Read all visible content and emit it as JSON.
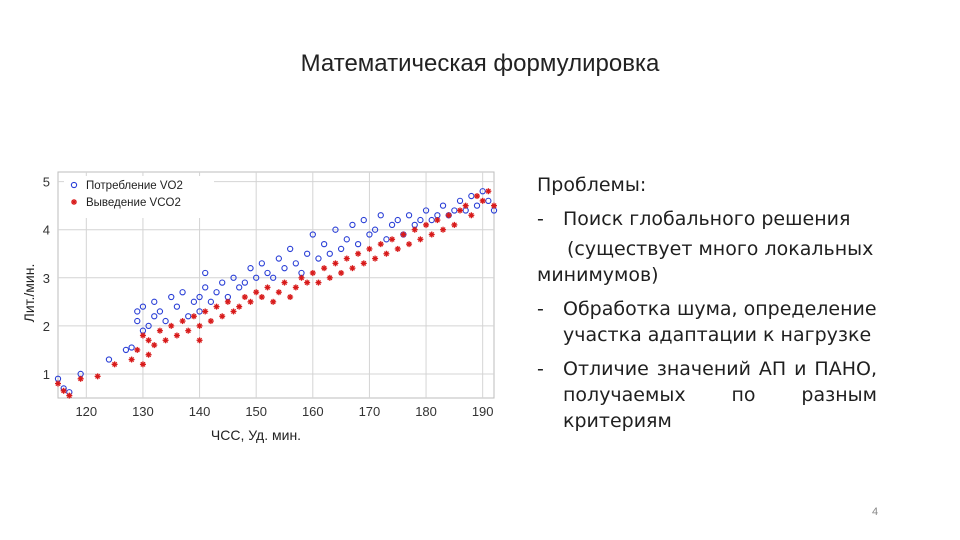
{
  "slide": {
    "title": "Математическая формулировка",
    "page_number": "4"
  },
  "text_panel": {
    "heading": "Проблемы:",
    "bullets": [
      {
        "dash": "-",
        "text": "Поиск глобального решения"
      },
      {
        "dash": "-",
        "text": "Обработка шума, определение участка адаптации к нагрузке"
      },
      {
        "dash": "-",
        "text": "Отличие значений АП и ПАНО, получаемых по разным критериям"
      }
    ],
    "note_line1": "(существует много локальных",
    "note_line2": "минимумов)"
  },
  "chart_data": {
    "type": "scatter",
    "xlabel": "ЧСС, Уд. мин.",
    "ylabel": "Лит./мин.",
    "xlim": [
      115,
      192
    ],
    "ylim": [
      0.5,
      5.2
    ],
    "x_ticks": [
      120,
      130,
      140,
      150,
      160,
      170,
      180,
      190
    ],
    "y_ticks": [
      1,
      2,
      3,
      4,
      5
    ],
    "grid": true,
    "legend_position": "top-left",
    "series": [
      {
        "name": "Потребление VO2",
        "marker": "circle",
        "color": "#2a3fd6",
        "points": [
          [
            115,
            0.9
          ],
          [
            116,
            0.7
          ],
          [
            117,
            0.62
          ],
          [
            119,
            1.0
          ],
          [
            124,
            1.3
          ],
          [
            127,
            1.5
          ],
          [
            128,
            1.55
          ],
          [
            129,
            2.1
          ],
          [
            129,
            2.3
          ],
          [
            130,
            1.9
          ],
          [
            130,
            2.4
          ],
          [
            131,
            2.0
          ],
          [
            132,
            2.2
          ],
          [
            132,
            2.5
          ],
          [
            133,
            2.3
          ],
          [
            134,
            2.1
          ],
          [
            135,
            2.6
          ],
          [
            136,
            2.4
          ],
          [
            137,
            2.7
          ],
          [
            138,
            2.2
          ],
          [
            139,
            2.5
          ],
          [
            140,
            2.3
          ],
          [
            140,
            2.6
          ],
          [
            141,
            2.8
          ],
          [
            141,
            3.1
          ],
          [
            142,
            2.5
          ],
          [
            143,
            2.7
          ],
          [
            144,
            2.9
          ],
          [
            145,
            2.6
          ],
          [
            146,
            3.0
          ],
          [
            147,
            2.8
          ],
          [
            148,
            2.9
          ],
          [
            149,
            3.2
          ],
          [
            150,
            3.0
          ],
          [
            151,
            3.3
          ],
          [
            152,
            3.1
          ],
          [
            153,
            3.0
          ],
          [
            154,
            3.4
          ],
          [
            155,
            3.2
          ],
          [
            156,
            3.6
          ],
          [
            157,
            3.3
          ],
          [
            158,
            3.1
          ],
          [
            159,
            3.5
          ],
          [
            160,
            3.9
          ],
          [
            161,
            3.4
          ],
          [
            162,
            3.7
          ],
          [
            163,
            3.5
          ],
          [
            164,
            4.0
          ],
          [
            165,
            3.6
          ],
          [
            166,
            3.8
          ],
          [
            167,
            4.1
          ],
          [
            168,
            3.7
          ],
          [
            169,
            4.2
          ],
          [
            170,
            3.9
          ],
          [
            171,
            4.0
          ],
          [
            172,
            4.3
          ],
          [
            173,
            3.8
          ],
          [
            174,
            4.1
          ],
          [
            175,
            4.2
          ],
          [
            176,
            3.9
          ],
          [
            177,
            4.3
          ],
          [
            178,
            4.1
          ],
          [
            179,
            4.2
          ],
          [
            180,
            4.4
          ],
          [
            181,
            4.2
          ],
          [
            182,
            4.3
          ],
          [
            183,
            4.5
          ],
          [
            184,
            4.3
          ],
          [
            185,
            4.4
          ],
          [
            186,
            4.6
          ],
          [
            187,
            4.4
          ],
          [
            188,
            4.7
          ],
          [
            189,
            4.5
          ],
          [
            190,
            4.8
          ],
          [
            191,
            4.6
          ],
          [
            192,
            4.4
          ]
        ]
      },
      {
        "name": "Выведение VCO2",
        "marker": "star",
        "color": "#d81b1b",
        "points": [
          [
            115,
            0.8
          ],
          [
            116,
            0.65
          ],
          [
            117,
            0.55
          ],
          [
            119,
            0.9
          ],
          [
            122,
            0.95
          ],
          [
            125,
            1.2
          ],
          [
            128,
            1.3
          ],
          [
            129,
            1.5
          ],
          [
            130,
            1.2
          ],
          [
            130,
            1.8
          ],
          [
            131,
            1.4
          ],
          [
            131,
            1.7
          ],
          [
            132,
            1.6
          ],
          [
            133,
            1.9
          ],
          [
            134,
            1.7
          ],
          [
            135,
            2.0
          ],
          [
            136,
            1.8
          ],
          [
            137,
            2.1
          ],
          [
            138,
            1.9
          ],
          [
            139,
            2.2
          ],
          [
            140,
            2.0
          ],
          [
            140,
            1.7
          ],
          [
            141,
            2.3
          ],
          [
            142,
            2.1
          ],
          [
            143,
            2.4
          ],
          [
            144,
            2.2
          ],
          [
            145,
            2.5
          ],
          [
            146,
            2.3
          ],
          [
            147,
            2.4
          ],
          [
            148,
            2.6
          ],
          [
            149,
            2.5
          ],
          [
            150,
            2.7
          ],
          [
            151,
            2.6
          ],
          [
            152,
            2.8
          ],
          [
            153,
            2.5
          ],
          [
            154,
            2.7
          ],
          [
            155,
            2.9
          ],
          [
            156,
            2.6
          ],
          [
            157,
            2.8
          ],
          [
            158,
            3.0
          ],
          [
            159,
            2.9
          ],
          [
            160,
            3.1
          ],
          [
            161,
            2.9
          ],
          [
            162,
            3.2
          ],
          [
            163,
            3.0
          ],
          [
            164,
            3.3
          ],
          [
            165,
            3.1
          ],
          [
            166,
            3.4
          ],
          [
            167,
            3.2
          ],
          [
            168,
            3.5
          ],
          [
            169,
            3.3
          ],
          [
            170,
            3.6
          ],
          [
            171,
            3.4
          ],
          [
            172,
            3.7
          ],
          [
            173,
            3.5
          ],
          [
            174,
            3.8
          ],
          [
            175,
            3.6
          ],
          [
            176,
            3.9
          ],
          [
            177,
            3.7
          ],
          [
            178,
            4.0
          ],
          [
            179,
            3.8
          ],
          [
            180,
            4.1
          ],
          [
            181,
            3.9
          ],
          [
            182,
            4.2
          ],
          [
            183,
            4.0
          ],
          [
            184,
            4.3
          ],
          [
            185,
            4.1
          ],
          [
            186,
            4.4
          ],
          [
            187,
            4.5
          ],
          [
            188,
            4.3
          ],
          [
            189,
            4.7
          ],
          [
            190,
            4.6
          ],
          [
            191,
            4.8
          ],
          [
            192,
            4.5
          ]
        ]
      }
    ]
  }
}
